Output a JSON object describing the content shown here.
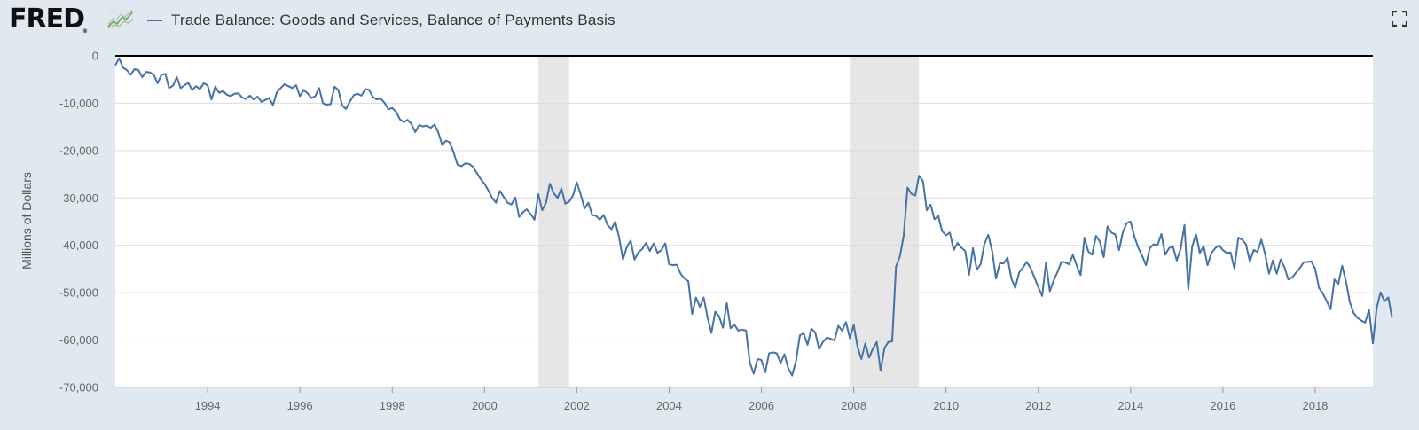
{
  "header": {
    "logo_text": "FRED",
    "logo_mark": "®",
    "legend_label": "Trade Balance: Goods and Services, Balance of Payments Basis",
    "icons": [
      "fred-chart-icon",
      "fullscreen-icon"
    ]
  },
  "colors": {
    "line": "#4572a7",
    "recession": "#e6e6e6",
    "plot_bg": "#ffffff",
    "page_bg": "#e1e9f0",
    "grid": "#dcdcdc",
    "zero_line": "#000000"
  },
  "chart_data": {
    "type": "line",
    "title": "",
    "xlabel": "",
    "ylabel": "Millions of Dollars",
    "ylim": [
      -70000,
      0
    ],
    "yticks": [
      0,
      -10000,
      -20000,
      -30000,
      -40000,
      -50000,
      -60000,
      -70000
    ],
    "ytick_labels": [
      "0",
      "-10,000",
      "-20,000",
      "-30,000",
      "-40,000",
      "-50,000",
      "-60,000",
      "-70,000"
    ],
    "xlim": [
      "1992-01",
      "2019-04"
    ],
    "xticks": [
      "1994",
      "1996",
      "1998",
      "2000",
      "2002",
      "2004",
      "2006",
      "2008",
      "2010",
      "2012",
      "2014",
      "2016",
      "2018"
    ],
    "grid": true,
    "legend_position": "top-left",
    "recessions": [
      {
        "start": "2001-03",
        "end": "2001-11"
      },
      {
        "start": "2007-12",
        "end": "2009-06"
      }
    ],
    "series": [
      {
        "name": "Trade Balance: Goods and Services, Balance of Payments Basis",
        "start": "1992-01",
        "frequency": "monthly",
        "values": [
          -2000,
          -500,
          -2500,
          -3000,
          -4000,
          -2800,
          -3000,
          -4500,
          -3400,
          -3500,
          -4000,
          -5800,
          -4000,
          -3800,
          -6800,
          -6300,
          -4500,
          -6800,
          -6200,
          -5700,
          -7200,
          -6400,
          -7000,
          -5800,
          -6200,
          -9200,
          -6500,
          -7800,
          -7400,
          -8200,
          -8500,
          -8000,
          -7900,
          -8800,
          -9100,
          -8400,
          -9200,
          -8600,
          -9700,
          -9300,
          -8900,
          -10400,
          -7700,
          -6800,
          -6000,
          -6400,
          -6800,
          -6200,
          -8500,
          -7200,
          -7900,
          -8900,
          -8500,
          -6800,
          -10000,
          -10300,
          -10200,
          -6500,
          -7200,
          -10500,
          -11200,
          -9600,
          -8300,
          -8000,
          -8400,
          -7000,
          -7200,
          -8700,
          -9200,
          -9000,
          -9900,
          -11300,
          -11000,
          -11800,
          -13400,
          -14000,
          -13500,
          -14400,
          -16100,
          -14600,
          -14900,
          -14700,
          -15200,
          -14500,
          -16200,
          -18800,
          -17900,
          -18300,
          -20500,
          -23000,
          -23300,
          -22700,
          -22800,
          -23400,
          -24700,
          -26000,
          -27000,
          -28400,
          -30000,
          -31000,
          -28500,
          -29800,
          -31000,
          -31400,
          -29900,
          -34000,
          -33000,
          -32400,
          -33400,
          -34600,
          -29200,
          -32600,
          -31000,
          -27000,
          -29000,
          -30000,
          -28000,
          -31200,
          -30800,
          -29500,
          -26700,
          -29200,
          -32200,
          -31000,
          -33600,
          -33800,
          -34600,
          -33600,
          -35700,
          -36600,
          -35000,
          -38300,
          -43000,
          -40400,
          -39000,
          -43000,
          -41500,
          -40800,
          -39500,
          -41200,
          -39600,
          -41600,
          -41000,
          -39600,
          -44000,
          -44200,
          -44100,
          -46000,
          -47000,
          -47600,
          -54500,
          -51000,
          -53000,
          -51000,
          -55200,
          -58500,
          -54000,
          -55000,
          -57400,
          -52200,
          -57500,
          -56800,
          -58000,
          -57800,
          -58000,
          -64800,
          -67100,
          -64000,
          -64200,
          -66800,
          -62800,
          -62600,
          -62800,
          -64800,
          -63000,
          -66000,
          -67500,
          -64400,
          -59000,
          -58600,
          -61000,
          -57600,
          -58400,
          -61900,
          -60400,
          -59500,
          -59700,
          -60100,
          -57000,
          -58000,
          -56200,
          -59600,
          -56800,
          -61400,
          -64000,
          -60700,
          -63700,
          -61800,
          -60400,
          -66500,
          -61700,
          -60400,
          -60300,
          -44500,
          -42400,
          -38000,
          -27800,
          -29100,
          -29500,
          -25300,
          -26400,
          -32600,
          -31400,
          -34500,
          -33800,
          -37000,
          -37900,
          -37300,
          -41000,
          -39500,
          -40500,
          -41200,
          -46200,
          -40600,
          -45100,
          -44000,
          -39700,
          -37800,
          -41200,
          -47000,
          -43800,
          -43800,
          -42600,
          -47000,
          -49000,
          -45800,
          -44700,
          -43500,
          -44800,
          -46800,
          -48800,
          -50700,
          -43700,
          -49700,
          -47400,
          -45600,
          -43500,
          -43600,
          -44000,
          -42000,
          -44300,
          -46300,
          -38400,
          -41300,
          -42000,
          -38000,
          -39200,
          -42500,
          -36000,
          -37300,
          -37700,
          -41000,
          -37200,
          -35300,
          -35000,
          -38200,
          -40500,
          -42200,
          -44200,
          -40600,
          -39800,
          -40000,
          -37600,
          -42000,
          -40600,
          -40200,
          -43200,
          -40800,
          -35700,
          -49300,
          -40300,
          -37600,
          -41600,
          -40200,
          -44200,
          -41700,
          -40600,
          -40000,
          -41000,
          -41600,
          -41500,
          -44900,
          -38400,
          -38800,
          -39800,
          -43400,
          -41000,
          -41400,
          -38800,
          -41900,
          -46000,
          -43200,
          -46000,
          -43000,
          -44600,
          -47200,
          -46800,
          -45800,
          -44800,
          -43600,
          -43500,
          -43400,
          -45000,
          -49000,
          -50200,
          -51800,
          -53500,
          -47200,
          -48200,
          -44300,
          -47600,
          -52000,
          -54300,
          -55300,
          -55900,
          -56300,
          -53600,
          -60700,
          -53200,
          -49900,
          -51800,
          -51000,
          -55300
        ]
      }
    ]
  }
}
